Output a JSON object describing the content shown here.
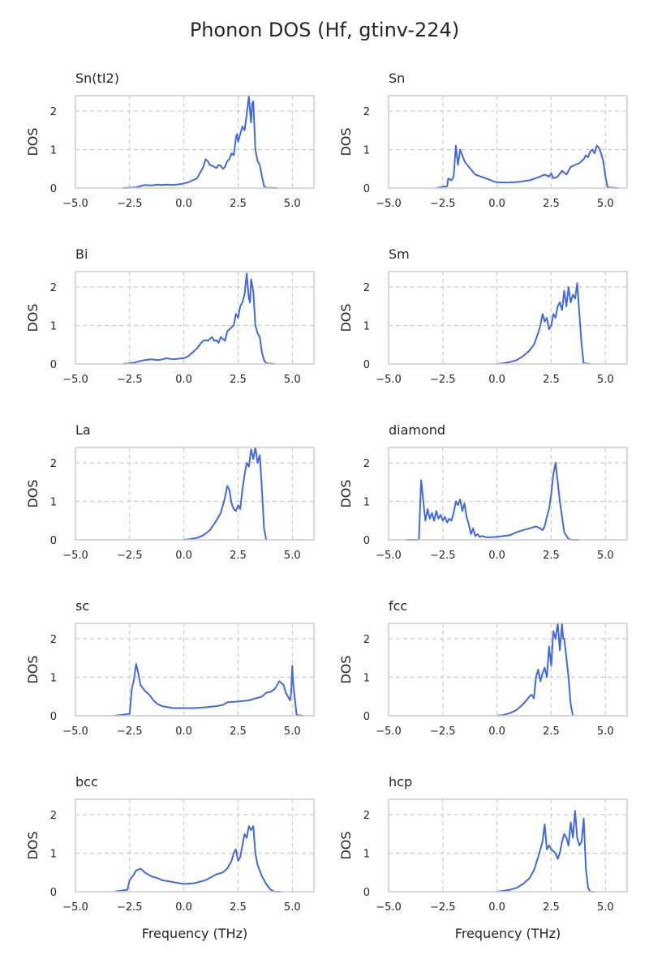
{
  "figure": {
    "title": "Phonon DOS (Hf, gtinv-224)"
  },
  "style": {
    "line_color": "#4169e1",
    "grid_color": "#cccccc",
    "frame_color": "#cccccc",
    "text_color": "#262626"
  },
  "chart_data": [
    {
      "type": "line",
      "title": "Sn(tI2)",
      "ylabel": "DOS",
      "xlabel": "",
      "xlim": [
        -5,
        6
      ],
      "ylim": [
        0,
        2.4
      ],
      "xticks": [
        -5.0,
        -2.5,
        0.0,
        2.5,
        5.0
      ],
      "xtick_labels": [
        "−5.0",
        "−2.5",
        "0.0",
        "2.5",
        "5.0"
      ],
      "yticks": [
        0,
        1,
        2
      ],
      "ytick_labels": [
        "0",
        "1",
        "2"
      ],
      "grid": true,
      "series": [
        {
          "x": [
            -2.8,
            -2.2,
            -2.0,
            -1.8,
            -1.5,
            -1.2,
            -1.0,
            -0.8,
            -0.5,
            -0.2,
            0.0,
            0.2,
            0.4,
            0.6,
            0.8,
            0.9,
            1.0,
            1.1,
            1.2,
            1.3,
            1.4,
            1.5,
            1.6,
            1.7,
            1.8,
            1.9,
            2.0,
            2.1,
            2.2,
            2.3,
            2.4,
            2.45,
            2.5,
            2.6,
            2.7,
            2.8,
            2.9,
            3.0,
            3.05,
            3.1,
            3.15,
            3.2,
            3.3,
            3.4,
            3.5,
            3.6,
            3.7,
            3.8,
            4.3
          ],
          "y": [
            0,
            0.02,
            0.05,
            0.08,
            0.07,
            0.09,
            0.08,
            0.09,
            0.08,
            0.1,
            0.12,
            0.15,
            0.2,
            0.25,
            0.45,
            0.55,
            0.75,
            0.7,
            0.6,
            0.58,
            0.55,
            0.52,
            0.6,
            0.58,
            0.5,
            0.55,
            0.7,
            0.75,
            0.9,
            0.85,
            1.3,
            1.4,
            1.2,
            1.4,
            1.6,
            1.5,
            1.9,
            2.4,
            2.0,
            1.7,
            2.2,
            2.25,
            1.0,
            0.7,
            0.6,
            0.3,
            0.05,
            0.01,
            0
          ]
        }
      ]
    },
    {
      "type": "line",
      "title": "Sn",
      "ylabel": "DOS",
      "xlabel": "",
      "xlim": [
        -5,
        6
      ],
      "ylim": [
        0,
        2.4
      ],
      "xticks": [
        -5.0,
        -2.5,
        0.0,
        2.5,
        5.0
      ],
      "xtick_labels": [
        "−5.0",
        "−2.5",
        "0.0",
        "2.5",
        "5.0"
      ],
      "yticks": [
        0,
        1,
        2
      ],
      "ytick_labels": [
        "0",
        "1",
        "2"
      ],
      "grid": true,
      "series": [
        {
          "x": [
            -2.8,
            -2.3,
            -2.25,
            -2.1,
            -2.0,
            -1.9,
            -1.8,
            -1.7,
            -1.6,
            -1.5,
            -1.3,
            -1.0,
            -0.5,
            -0.2,
            0.0,
            0.5,
            1.0,
            1.5,
            2.0,
            2.2,
            2.4,
            2.5,
            2.6,
            2.8,
            3.0,
            3.2,
            3.4,
            3.6,
            3.8,
            4.0,
            4.1,
            4.2,
            4.3,
            4.4,
            4.5,
            4.6,
            4.7,
            4.8,
            4.9,
            5.0,
            5.1,
            5.6
          ],
          "y": [
            0,
            0.05,
            0.25,
            0.2,
            0.3,
            1.1,
            0.6,
            1.0,
            0.85,
            0.7,
            0.55,
            0.35,
            0.25,
            0.18,
            0.15,
            0.14,
            0.16,
            0.2,
            0.3,
            0.35,
            0.3,
            0.38,
            0.25,
            0.3,
            0.45,
            0.35,
            0.55,
            0.6,
            0.65,
            0.75,
            0.85,
            0.8,
            0.95,
            1.0,
            0.9,
            1.1,
            1.05,
            0.9,
            0.7,
            0.3,
            0.02,
            0
          ]
        }
      ]
    },
    {
      "type": "line",
      "title": "Bi",
      "ylabel": "DOS",
      "xlabel": "",
      "xlim": [
        -5,
        6
      ],
      "ylim": [
        0,
        2.4
      ],
      "xticks": [
        -5.0,
        -2.5,
        0.0,
        2.5,
        5.0
      ],
      "xtick_labels": [
        "−5.0",
        "−2.5",
        "0.0",
        "2.5",
        "5.0"
      ],
      "yticks": [
        0,
        1,
        2
      ],
      "ytick_labels": [
        "0",
        "1",
        "2"
      ],
      "grid": true,
      "series": [
        {
          "x": [
            -2.8,
            -2.3,
            -2.0,
            -1.8,
            -1.5,
            -1.2,
            -1.0,
            -0.8,
            -0.5,
            -0.2,
            0.0,
            0.2,
            0.4,
            0.6,
            0.8,
            0.9,
            1.0,
            1.1,
            1.2,
            1.3,
            1.4,
            1.5,
            1.6,
            1.7,
            1.8,
            1.9,
            2.0,
            2.1,
            2.2,
            2.3,
            2.4,
            2.5,
            2.6,
            2.7,
            2.8,
            2.9,
            3.0,
            3.05,
            3.1,
            3.2,
            3.3,
            3.4,
            3.5,
            3.6,
            3.7,
            3.8,
            4.2
          ],
          "y": [
            0,
            0.03,
            0.08,
            0.1,
            0.12,
            0.1,
            0.12,
            0.15,
            0.12,
            0.14,
            0.15,
            0.2,
            0.3,
            0.4,
            0.55,
            0.6,
            0.62,
            0.6,
            0.65,
            0.7,
            0.6,
            0.62,
            0.55,
            0.7,
            0.65,
            0.6,
            0.85,
            0.9,
            0.95,
            1.0,
            1.3,
            1.2,
            1.5,
            1.6,
            1.8,
            2.35,
            1.7,
            1.6,
            2.2,
            1.9,
            1.0,
            0.8,
            0.7,
            0.3,
            0.1,
            0.02,
            0
          ]
        }
      ]
    },
    {
      "type": "line",
      "title": "Sm",
      "ylabel": "DOS",
      "xlabel": "",
      "xlim": [
        -5,
        6
      ],
      "ylim": [
        0,
        2.4
      ],
      "xticks": [
        -5.0,
        -2.5,
        0.0,
        2.5,
        5.0
      ],
      "xtick_labels": [
        "−5.0",
        "−2.5",
        "0.0",
        "2.5",
        "5.0"
      ],
      "yticks": [
        0,
        1,
        2
      ],
      "ytick_labels": [
        "0",
        "1",
        "2"
      ],
      "grid": true,
      "series": [
        {
          "x": [
            0.0,
            0.3,
            0.6,
            0.9,
            1.2,
            1.5,
            1.7,
            1.9,
            2.0,
            2.1,
            2.2,
            2.3,
            2.4,
            2.5,
            2.6,
            2.7,
            2.8,
            2.9,
            3.0,
            3.1,
            3.2,
            3.3,
            3.4,
            3.5,
            3.6,
            3.7,
            3.8,
            3.9,
            4.0,
            4.3
          ],
          "y": [
            0,
            0.02,
            0.05,
            0.1,
            0.2,
            0.35,
            0.5,
            0.8,
            1.0,
            1.3,
            1.1,
            1.2,
            0.9,
            1.0,
            1.3,
            1.2,
            1.5,
            1.6,
            1.4,
            1.9,
            1.5,
            2.0,
            1.6,
            1.8,
            1.7,
            2.1,
            1.3,
            0.5,
            0.02,
            0
          ]
        }
      ]
    },
    {
      "type": "line",
      "title": "La",
      "ylabel": "DOS",
      "xlabel": "",
      "xlim": [
        -5,
        6
      ],
      "ylim": [
        0,
        2.4
      ],
      "xticks": [
        -5.0,
        -2.5,
        0.0,
        2.5,
        5.0
      ],
      "xtick_labels": [
        "−5.0",
        "−2.5",
        "0.0",
        "2.5",
        "5.0"
      ],
      "yticks": [
        0,
        1,
        2
      ],
      "ytick_labels": [
        "0",
        "1",
        "2"
      ],
      "grid": true,
      "series": [
        {
          "x": [
            0.0,
            0.3,
            0.6,
            0.9,
            1.2,
            1.5,
            1.7,
            1.8,
            1.9,
            2.0,
            2.1,
            2.2,
            2.3,
            2.4,
            2.5,
            2.6,
            2.7,
            2.8,
            2.9,
            3.0,
            3.1,
            3.2,
            3.3,
            3.4,
            3.5,
            3.6,
            3.7,
            3.8
          ],
          "y": [
            0,
            0.02,
            0.05,
            0.12,
            0.25,
            0.5,
            0.7,
            0.9,
            1.1,
            1.4,
            1.3,
            0.95,
            0.8,
            0.75,
            0.9,
            0.8,
            1.3,
            1.7,
            2.0,
            1.9,
            2.35,
            2.1,
            2.4,
            2.0,
            2.2,
            1.3,
            0.3,
            0
          ]
        }
      ]
    },
    {
      "type": "line",
      "title": "diamond",
      "ylabel": "DOS",
      "xlabel": "",
      "xlim": [
        -5,
        6
      ],
      "ylim": [
        0,
        2.4
      ],
      "xticks": [
        -5.0,
        -2.5,
        0.0,
        2.5,
        5.0
      ],
      "xtick_labels": [
        "−5.0",
        "−2.5",
        "0.0",
        "2.5",
        "5.0"
      ],
      "yticks": [
        0,
        1,
        2
      ],
      "ytick_labels": [
        "0",
        "1",
        "2"
      ],
      "grid": true,
      "series": [
        {
          "x": [
            -4.2,
            -3.6,
            -3.5,
            -3.4,
            -3.3,
            -3.2,
            -3.1,
            -3.0,
            -2.9,
            -2.8,
            -2.7,
            -2.6,
            -2.5,
            -2.4,
            -2.3,
            -2.2,
            -2.1,
            -2.0,
            -1.9,
            -1.8,
            -1.7,
            -1.6,
            -1.5,
            -1.4,
            -1.3,
            -1.2,
            -1.1,
            -1.0,
            -0.9,
            -0.8,
            -0.7,
            -0.5,
            -0.3,
            0.0,
            0.3,
            0.6,
            0.9,
            1.2,
            1.5,
            1.8,
            2.0,
            2.1,
            2.2,
            2.3,
            2.4,
            2.5,
            2.6,
            2.7,
            2.8,
            2.9,
            3.0,
            3.1,
            3.3,
            3.5,
            3.8
          ],
          "y": [
            0,
            0,
            1.55,
            1.0,
            0.5,
            0.8,
            0.55,
            0.7,
            0.5,
            0.75,
            0.55,
            0.65,
            0.5,
            0.6,
            0.45,
            0.55,
            0.5,
            0.7,
            1.0,
            0.9,
            1.05,
            0.75,
            0.95,
            0.6,
            0.4,
            0.15,
            0.3,
            0.1,
            0.15,
            0.08,
            0.1,
            0.07,
            0.07,
            0.08,
            0.1,
            0.12,
            0.2,
            0.25,
            0.3,
            0.35,
            0.3,
            0.25,
            0.35,
            0.6,
            0.8,
            1.2,
            1.7,
            2.0,
            1.5,
            1.0,
            0.6,
            0.2,
            0.02,
            0,
            0
          ]
        }
      ]
    },
    {
      "type": "line",
      "title": "sc",
      "ylabel": "DOS",
      "xlabel": "",
      "xlim": [
        -5,
        6
      ],
      "ylim": [
        0,
        2.4
      ],
      "xticks": [
        -5.0,
        -2.5,
        0.0,
        2.5,
        5.0
      ],
      "xtick_labels": [
        "−5.0",
        "−2.5",
        "0.0",
        "2.5",
        "5.0"
      ],
      "yticks": [
        0,
        1,
        2
      ],
      "ytick_labels": [
        "0",
        "1",
        "2"
      ],
      "grid": true,
      "series": [
        {
          "x": [
            -3.2,
            -2.5,
            -2.4,
            -2.3,
            -2.2,
            -2.1,
            -2.0,
            -1.8,
            -1.6,
            -1.4,
            -1.2,
            -1.0,
            -0.5,
            0.0,
            0.5,
            1.0,
            1.5,
            1.8,
            2.0,
            2.5,
            3.0,
            3.3,
            3.6,
            3.8,
            4.0,
            4.2,
            4.4,
            4.6,
            4.7,
            4.8,
            4.9,
            4.95,
            5.0,
            5.05,
            5.2,
            5.5
          ],
          "y": [
            0,
            0.05,
            0.7,
            0.95,
            1.35,
            1.1,
            0.8,
            0.65,
            0.55,
            0.4,
            0.3,
            0.25,
            0.2,
            0.2,
            0.2,
            0.22,
            0.25,
            0.28,
            0.35,
            0.37,
            0.4,
            0.45,
            0.5,
            0.6,
            0.62,
            0.7,
            0.9,
            0.8,
            0.6,
            0.5,
            0.4,
            0.6,
            1.3,
            0.8,
            0.02,
            0
          ]
        }
      ]
    },
    {
      "type": "line",
      "title": "fcc",
      "ylabel": "DOS",
      "xlabel": "",
      "xlim": [
        -5,
        6
      ],
      "ylim": [
        0,
        2.4
      ],
      "xticks": [
        -5.0,
        -2.5,
        0.0,
        2.5,
        5.0
      ],
      "xtick_labels": [
        "−5.0",
        "−2.5",
        "0.0",
        "2.5",
        "5.0"
      ],
      "yticks": [
        0,
        1,
        2
      ],
      "ytick_labels": [
        "0",
        "1",
        "2"
      ],
      "grid": true,
      "series": [
        {
          "x": [
            0.0,
            0.3,
            0.6,
            0.9,
            1.2,
            1.5,
            1.6,
            1.7,
            1.8,
            1.9,
            2.0,
            2.1,
            2.2,
            2.3,
            2.4,
            2.5,
            2.6,
            2.7,
            2.8,
            2.9,
            3.0,
            3.05,
            3.1,
            3.2,
            3.3,
            3.4,
            3.5
          ],
          "y": [
            0,
            0.02,
            0.07,
            0.15,
            0.3,
            0.5,
            0.55,
            0.45,
            1.0,
            1.2,
            0.9,
            1.1,
            1.25,
            1.0,
            1.8,
            1.3,
            2.2,
            2.0,
            2.4,
            1.7,
            2.4,
            2.0,
            2.0,
            1.5,
            1.0,
            0.3,
            0
          ]
        }
      ]
    },
    {
      "type": "line",
      "title": "bcc",
      "ylabel": "DOS",
      "xlabel": "Frequency (THz)",
      "xlim": [
        -5,
        6
      ],
      "ylim": [
        0,
        2.4
      ],
      "xticks": [
        -5.0,
        -2.5,
        0.0,
        2.5,
        5.0
      ],
      "xtick_labels": [
        "−5.0",
        "−2.5",
        "0.0",
        "2.5",
        "5.0"
      ],
      "yticks": [
        0,
        1,
        2
      ],
      "ytick_labels": [
        "0",
        "1",
        "2"
      ],
      "grid": true,
      "series": [
        {
          "x": [
            -3.2,
            -2.6,
            -2.5,
            -2.3,
            -2.2,
            -2.0,
            -1.8,
            -1.5,
            -1.2,
            -1.0,
            -0.5,
            0.0,
            0.5,
            1.0,
            1.5,
            1.8,
            2.0,
            2.2,
            2.3,
            2.4,
            2.5,
            2.6,
            2.7,
            2.8,
            2.9,
            3.0,
            3.1,
            3.2,
            3.3,
            3.4,
            3.6,
            3.8,
            4.0,
            4.2,
            4.5
          ],
          "y": [
            0,
            0.05,
            0.3,
            0.45,
            0.55,
            0.6,
            0.5,
            0.4,
            0.35,
            0.3,
            0.25,
            0.2,
            0.22,
            0.3,
            0.45,
            0.5,
            0.6,
            0.8,
            1.0,
            1.1,
            0.8,
            0.9,
            1.2,
            1.5,
            1.4,
            1.7,
            1.6,
            1.7,
            1.0,
            0.7,
            0.4,
            0.2,
            0.05,
            0,
            0
          ]
        }
      ]
    },
    {
      "type": "line",
      "title": "hcp",
      "ylabel": "DOS",
      "xlabel": "Frequency (THz)",
      "xlim": [
        -5,
        6
      ],
      "ylim": [
        0,
        2.4
      ],
      "xticks": [
        -5.0,
        -2.5,
        0.0,
        2.5,
        5.0
      ],
      "xtick_labels": [
        "−5.0",
        "−2.5",
        "0.0",
        "2.5",
        "5.0"
      ],
      "yticks": [
        0,
        1,
        2
      ],
      "ytick_labels": [
        "0",
        "1",
        "2"
      ],
      "grid": true,
      "series": [
        {
          "x": [
            0.0,
            0.3,
            0.6,
            0.9,
            1.2,
            1.5,
            1.7,
            1.9,
            2.0,
            2.1,
            2.2,
            2.3,
            2.4,
            2.5,
            2.6,
            2.7,
            2.8,
            2.9,
            3.0,
            3.1,
            3.2,
            3.3,
            3.4,
            3.5,
            3.6,
            3.7,
            3.8,
            3.9,
            4.0,
            4.1,
            4.2,
            4.3,
            4.5
          ],
          "y": [
            0,
            0.02,
            0.05,
            0.1,
            0.2,
            0.35,
            0.55,
            0.9,
            1.1,
            1.3,
            1.75,
            1.1,
            1.2,
            1.1,
            1.05,
            1.0,
            0.85,
            1.0,
            1.3,
            1.5,
            1.4,
            1.2,
            1.8,
            1.4,
            2.1,
            1.4,
            1.2,
            1.3,
            1.9,
            0.6,
            0.1,
            0,
            0
          ]
        }
      ]
    }
  ]
}
